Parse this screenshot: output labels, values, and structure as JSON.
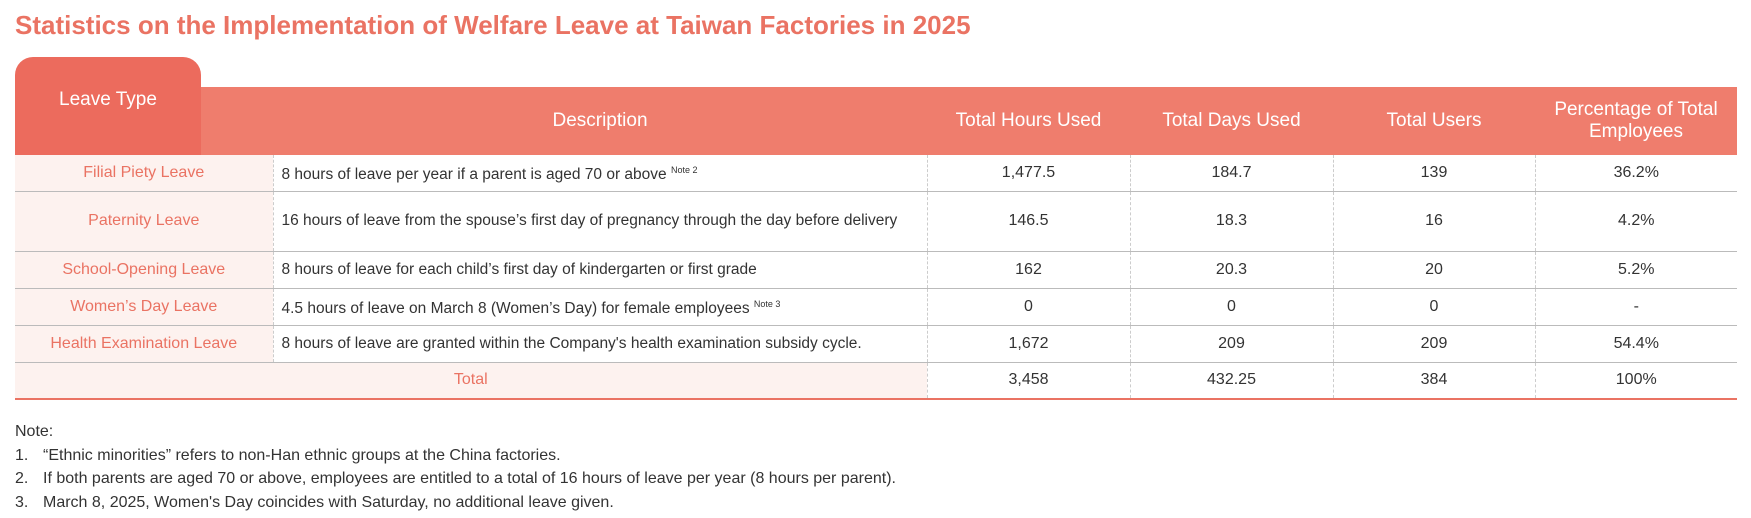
{
  "title": "Statistics on the Implementation of Welfare Leave at Taiwan Factories in 2025",
  "table": {
    "headers": [
      "Leave Type",
      "Description",
      "Total Hours Used",
      "Total Days Used",
      "Total Users",
      "Percentage of Total Employees"
    ],
    "rows": [
      {
        "type": "Filial Piety Leave",
        "description": "8 hours of leave per year if a parent is aged 70 or above",
        "note": "Note 2",
        "hours": "1,477.5",
        "days": "184.7",
        "users": "139",
        "percentage": "36.2%"
      },
      {
        "type": "Paternity Leave",
        "description": "16 hours of leave from the spouse’s first day of pregnancy through the day before delivery",
        "hours": "146.5",
        "days": "18.3",
        "users": "16",
        "percentage": "4.2%"
      },
      {
        "type": "School-Opening Leave",
        "description": "8 hours of leave for each child’s first day of kindergarten or first grade",
        "hours": "162",
        "days": "20.3",
        "users": "20",
        "percentage": "5.2%"
      },
      {
        "type": "Women’s Day Leave",
        "description": "4.5 hours of leave on March 8 (Women’s Day) for female employees",
        "note": "Note 3",
        "hours": "0",
        "days": "0",
        "users": "0",
        "percentage": "-"
      },
      {
        "type": "Health Examination Leave",
        "description": "8 hours of leave are granted within the Company's health examination subsidy cycle.",
        "hours": "1,672",
        "days": "209",
        "users": "209",
        "percentage": "54.4%"
      }
    ],
    "total": {
      "label": "Total",
      "hours": "3,458",
      "days": "432.25",
      "users": "384",
      "percentage": "100%"
    }
  },
  "notes": {
    "heading": "Note:",
    "items": [
      {
        "number": "1.",
        "text": "“Ethnic minorities” refers to non-Han ethnic groups at the China factories."
      },
      {
        "number": "2.",
        "text": "If both parents are aged 70 or above, employees are entitled to a total of 16 hours of leave per year (8 hours per parent)."
      },
      {
        "number": "3.",
        "text": "March 8, 2025, Women's Day coincides with Saturday, no additional leave given."
      }
    ]
  }
}
